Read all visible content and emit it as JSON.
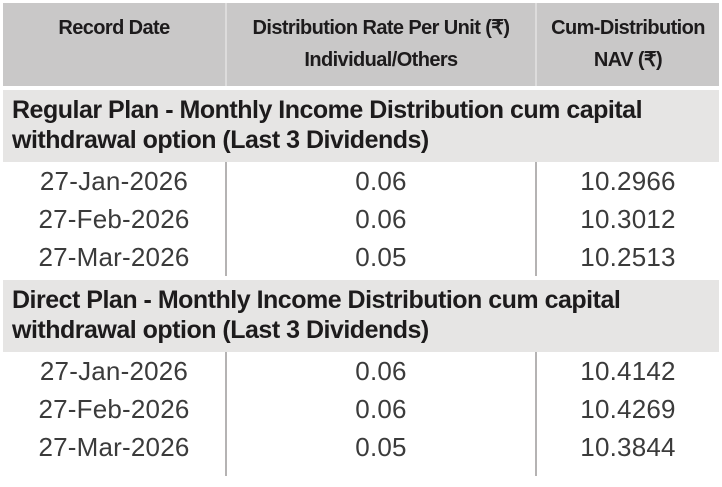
{
  "colors": {
    "header_bg": "#c9c8c8",
    "section_bg": "#e6e5e4",
    "column_divider": "#b5b3b3",
    "header_divider": "#dddcdc",
    "heading_text": "#1d1b1c",
    "data_text": "#3b3b3b",
    "page_bg": "#ffffff"
  },
  "table": {
    "columns": [
      {
        "line1": "Record Date",
        "line2": ""
      },
      {
        "line1": "Distribution Rate Per Unit  (₹)",
        "line2": "Individual/Others"
      },
      {
        "line1": "Cum-Distribution",
        "line2": "NAV (₹)"
      }
    ],
    "sections": [
      {
        "title": "Regular Plan - Monthly Income Distribution cum capital withdrawal option (Last 3 Dividends)",
        "rows": [
          {
            "record_date": "27-Jan-2026",
            "rate": "0.06",
            "nav": "10.2966"
          },
          {
            "record_date": "27-Feb-2026",
            "rate": "0.06",
            "nav": "10.3012"
          },
          {
            "record_date": "27-Mar-2026",
            "rate": "0.05",
            "nav": "10.2513"
          }
        ]
      },
      {
        "title": "Direct Plan - Monthly Income Distribution cum capital withdrawal option (Last 3 Dividends)",
        "rows": [
          {
            "record_date": "27-Jan-2026",
            "rate": "0.06",
            "nav": "10.4142"
          },
          {
            "record_date": "27-Feb-2026",
            "rate": "0.06",
            "nav": "10.4269"
          },
          {
            "record_date": "27-Mar-2026",
            "rate": "0.05",
            "nav": "10.3844"
          }
        ]
      }
    ]
  }
}
